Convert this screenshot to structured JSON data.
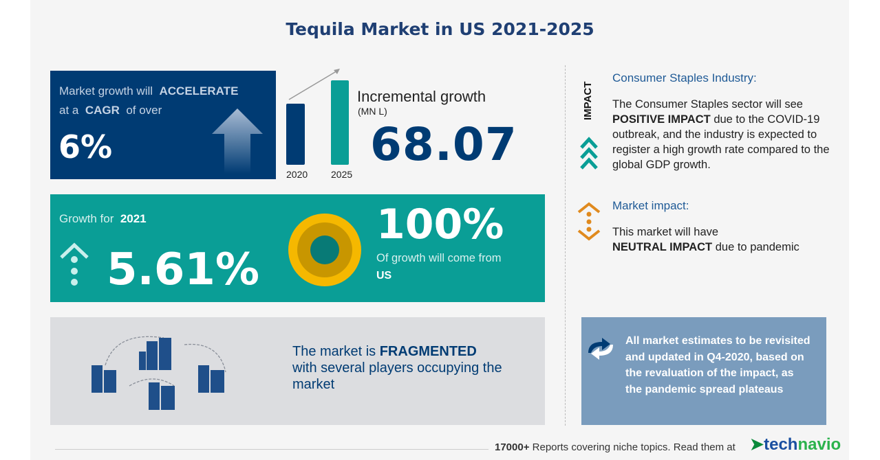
{
  "title": "Tequila Market in US 2021-2025",
  "cagr": {
    "line1_pre": "Market growth will",
    "line1_bold": "ACCELERATE",
    "line2_pre": "at a",
    "line2_bold": "CAGR",
    "line2_post": "of over",
    "value": "6%"
  },
  "incremental": {
    "bar_labels": [
      "2020",
      "2025"
    ],
    "label": "Incremental growth",
    "unit": "(MN L)",
    "value": "68.07"
  },
  "growth_year": {
    "label": "Growth for",
    "year": "2021",
    "value": "5.61%"
  },
  "regional": {
    "value": "100%",
    "text": "Of growth will come from",
    "region": "US"
  },
  "fragmented": {
    "pre": "The market is",
    "bold": "FRAGMENTED",
    "post": "with several players occupying the market"
  },
  "impact": {
    "vertical_label": "IMPACT",
    "heading": "Consumer Staples Industry:",
    "p1_pre": "The Consumer Staples sector will see",
    "p1_bold": "POSITIVE IMPACT",
    "p1_post": "due to the COVID-19 outbreak, and the industry is expected to register a high growth rate compared to the global GDP growth.",
    "heading2": "Market impact:",
    "p2_pre": "This market will have",
    "p2_bold": "NEUTRAL IMPACT",
    "p2_post": "due to pandemic"
  },
  "notice": "All market estimates to be revisited and updated in Q4-2020, based on the revaluation of the impact, as the pandemic spread plateaus",
  "footer": {
    "count": "17000+",
    "text": "Reports covering niche topics. Read them at",
    "brand_a": "tech",
    "brand_b": "navio"
  },
  "colors": {
    "navy": "#003b73",
    "teal": "#0a9e96",
    "orange": "#e08a1e",
    "gold": "#f5b800"
  }
}
